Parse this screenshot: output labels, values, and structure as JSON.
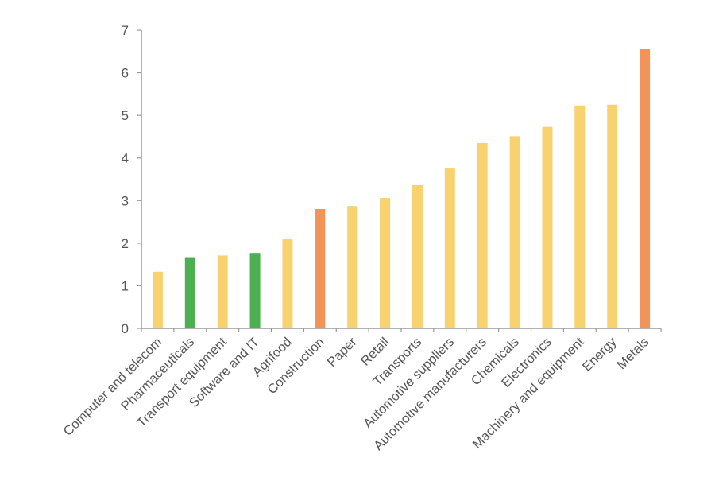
{
  "chart_data": {
    "type": "bar",
    "categories": [
      "Computer and telecom",
      "Pharmaceuticals",
      "Transport equipment",
      "Software and IT",
      "Agrifood",
      "Construction",
      "Paper",
      "Retail",
      "Transports",
      "Automotive suppliers",
      "Automotive manufacturers",
      "Chemicals",
      "Electronics",
      "Machinery and equipment",
      "Energy",
      "Metals"
    ],
    "values": [
      1.33,
      1.67,
      1.71,
      1.77,
      2.09,
      2.8,
      2.87,
      3.06,
      3.36,
      3.77,
      4.35,
      4.51,
      4.73,
      5.23,
      5.25,
      6.57
    ],
    "colors": [
      "#f8d26e",
      "#4caf50",
      "#f8d26e",
      "#4caf50",
      "#f8d26e",
      "#f2935a",
      "#f8d26e",
      "#f8d26e",
      "#f8d26e",
      "#f8d26e",
      "#f8d26e",
      "#f8d26e",
      "#f8d26e",
      "#f8d26e",
      "#f8d26e",
      "#f2935a"
    ],
    "ylim": [
      0,
      7
    ],
    "yticks": [
      "0",
      "1",
      "2",
      "3",
      "4",
      "5",
      "6",
      "7"
    ],
    "grid": false,
    "title": "",
    "xlabel": "",
    "ylabel": ""
  }
}
